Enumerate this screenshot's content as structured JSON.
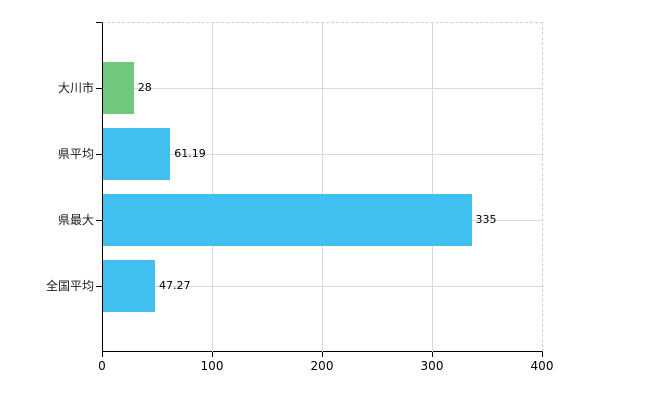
{
  "chart_data": {
    "type": "bar",
    "orientation": "horizontal",
    "title": "",
    "categories": [
      "大川市",
      "県平均",
      "県最大",
      "全国平均"
    ],
    "values": [
      28,
      61.19,
      335,
      47.27
    ],
    "value_labels": [
      "28",
      "61.19",
      "335",
      "47.27"
    ],
    "bar_colors": [
      "#6FCA7D",
      "#41C0F0",
      "#41C0F0",
      "#41C0F0"
    ],
    "xlim": [
      0,
      400
    ],
    "x_ticks": [
      0,
      100,
      200,
      300,
      400
    ],
    "x_tick_labels": [
      "0",
      "100",
      "200",
      "300",
      "400"
    ],
    "grid": true,
    "legend": false
  },
  "style": {
    "background": "#ffffff",
    "axis_color": "#000000",
    "grid_color": "#d9d9d9",
    "dashed_border_color": "#cfcfcf",
    "category_label_color": "#1a1a1a",
    "value_label_color": "#000000"
  }
}
